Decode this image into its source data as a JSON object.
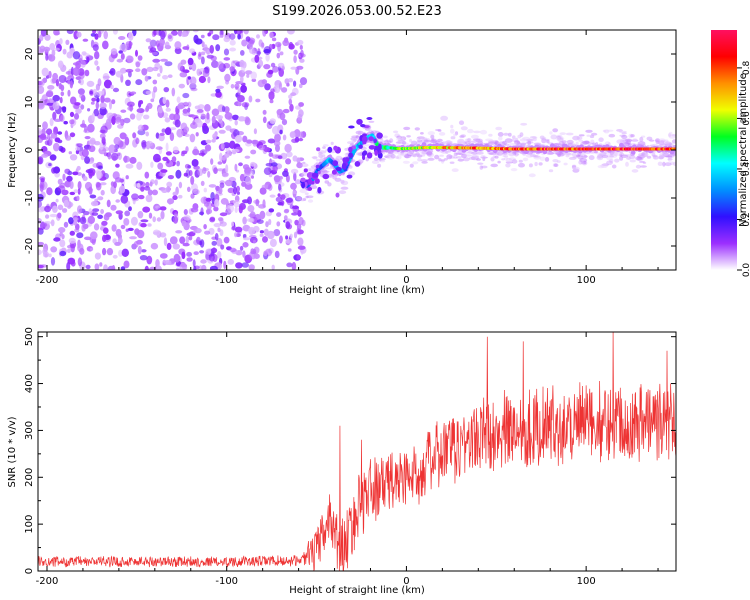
{
  "figure_title": "S199.2026.053.00.52.E23",
  "colorbar": {
    "label": "Normalized spectral amplitude",
    "ticks": [
      "0.0",
      "0.2",
      "0.4",
      "0.6",
      "0.8"
    ],
    "tick_values": [
      0.0,
      0.2,
      0.4,
      0.6,
      0.8
    ],
    "range": [
      0.0,
      0.95
    ],
    "colors": [
      "#ffffff",
      "#9b2fff",
      "#3010ff",
      "#0090ff",
      "#00ffff",
      "#00ff20",
      "#f0ff00",
      "#ff9000",
      "#ff0000",
      "#ff1060"
    ]
  },
  "chart_data": [
    {
      "type": "heatmap",
      "title": "S199.2026.053.00.52.E23",
      "xlabel": "Height of straight line (km)",
      "ylabel": "Frequency (Hz)",
      "xlim": [
        -205,
        150
      ],
      "ylim": [
        -25,
        25
      ],
      "x_ticks": [
        -200,
        -100,
        0,
        100
      ],
      "x_tick_labels": [
        "-200",
        "-100",
        "0",
        "100"
      ],
      "y_ticks": [
        -20,
        -10,
        0,
        10,
        20
      ],
      "y_tick_labels": [
        "-20",
        "-10",
        "0",
        "10",
        "20"
      ],
      "noise_region_x": [
        -205,
        -57
      ],
      "ridge": {
        "x": [
          -58,
          -55,
          -52,
          -49,
          -46,
          -43,
          -40,
          -37,
          -34,
          -31,
          -28,
          -25,
          -22,
          -19,
          -16,
          -13,
          -10,
          -5,
          0,
          10,
          20,
          40,
          60,
          80,
          100,
          120,
          150
        ],
        "freq": [
          -6.5,
          -7.5,
          -6,
          -4,
          -3,
          -2,
          -3,
          -4.5,
          -4,
          -1.5,
          0.5,
          1.5,
          2.5,
          3,
          1,
          0.5,
          0.5,
          0.3,
          0.3,
          0.5,
          0.5,
          0.4,
          0.2,
          0.2,
          0.2,
          0.2,
          0.2
        ],
        "amplitude": [
          0.25,
          0.3,
          0.3,
          0.25,
          0.3,
          0.35,
          0.3,
          0.3,
          0.3,
          0.35,
          0.4,
          0.4,
          0.4,
          0.45,
          0.45,
          0.5,
          0.5,
          0.55,
          0.6,
          0.65,
          0.7,
          0.75,
          0.8,
          0.85,
          0.85,
          0.85,
          0.85
        ]
      }
    },
    {
      "type": "line",
      "xlabel": "Height of straight line (km)",
      "ylabel": "SNR (10 * v/v)",
      "xlim": [
        -205,
        150
      ],
      "ylim": [
        0,
        510
      ],
      "x_ticks": [
        -200,
        -100,
        0,
        100
      ],
      "x_tick_labels": [
        "-200",
        "-100",
        "0",
        "100"
      ],
      "y_ticks": [
        0,
        100,
        200,
        300,
        400,
        500
      ],
      "y_tick_labels": [
        "0",
        "100",
        "200",
        "300",
        "400",
        "500"
      ],
      "color": "#ee3333",
      "trend": {
        "x": [
          -205,
          -150,
          -100,
          -60,
          -50,
          -45,
          -42,
          -38,
          -35,
          -30,
          -25,
          -20,
          -10,
          0,
          10,
          20,
          30,
          50,
          80,
          110,
          150
        ],
        "y": [
          20,
          20,
          20,
          22,
          40,
          90,
          120,
          60,
          40,
          100,
          150,
          170,
          190,
          200,
          220,
          250,
          270,
          300,
          310,
          320,
          320
        ]
      },
      "noise_amplitude": {
        "x": [
          -205,
          -58,
          -50,
          -30,
          0,
          30,
          150
        ],
        "amp": [
          12,
          12,
          60,
          80,
          70,
          85,
          90
        ]
      },
      "peaks": [
        {
          "x": -37,
          "y": 310
        },
        {
          "x": -25,
          "y": 280
        },
        {
          "x": 45,
          "y": 500
        },
        {
          "x": 65,
          "y": 490
        },
        {
          "x": 115,
          "y": 510
        },
        {
          "x": 145,
          "y": 470
        }
      ]
    }
  ]
}
